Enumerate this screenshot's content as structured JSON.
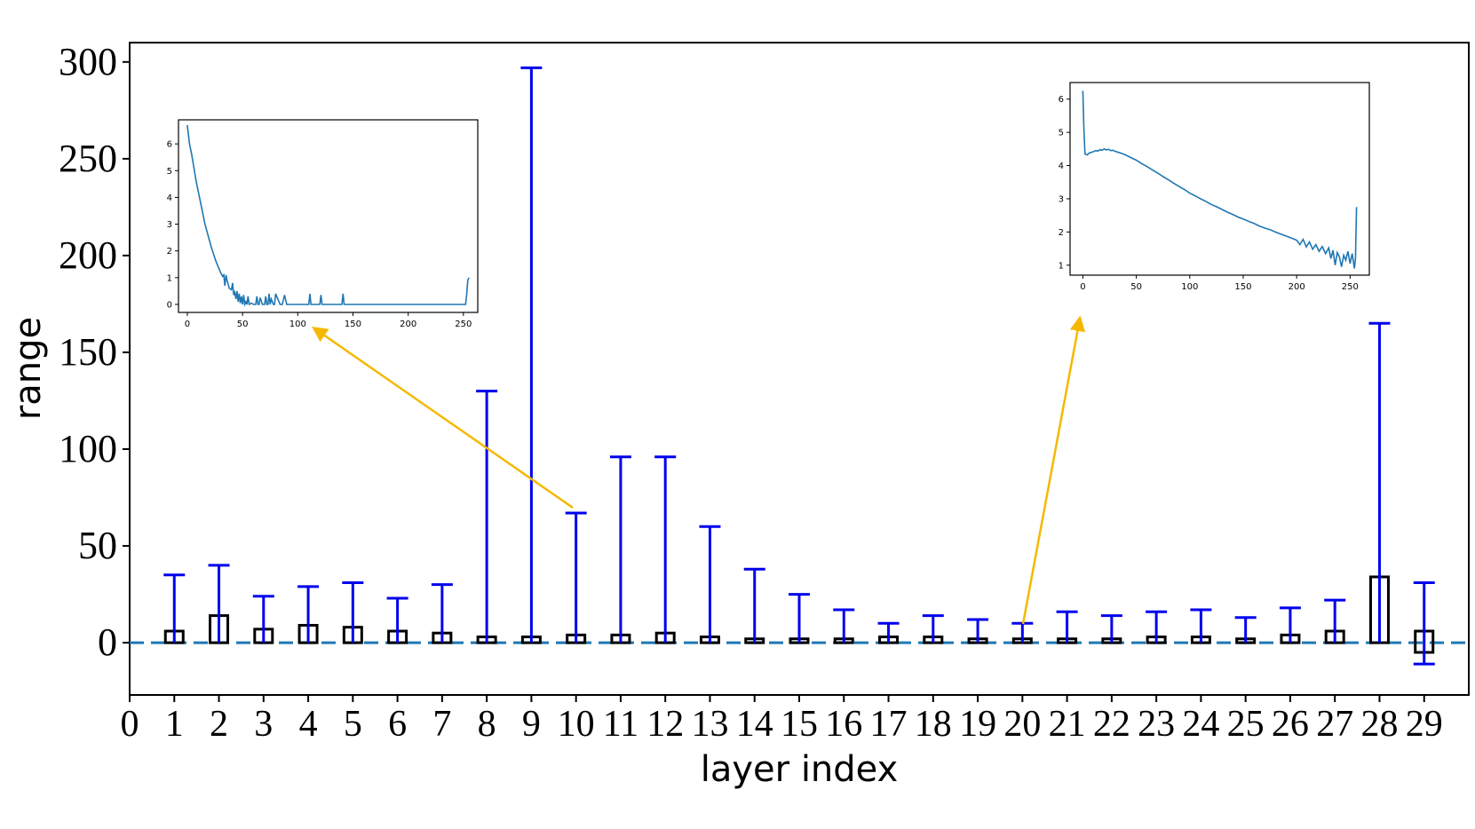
{
  "chart_data": {
    "type": "box",
    "xlabel": "layer index",
    "ylabel": "range",
    "xlim": [
      0,
      30
    ],
    "ylim": [
      -27,
      310
    ],
    "xticks": [
      0,
      1,
      2,
      3,
      4,
      5,
      6,
      7,
      8,
      9,
      10,
      11,
      12,
      13,
      14,
      15,
      16,
      17,
      18,
      19,
      20,
      21,
      22,
      23,
      24,
      25,
      26,
      27,
      28,
      29
    ],
    "yticks": [
      0,
      50,
      100,
      150,
      200,
      250,
      300
    ],
    "reference_line": {
      "y": 0,
      "style": "dashed",
      "color": "#1f77b4"
    },
    "whisker_color": "#0000ee",
    "box_color": "#000000",
    "layers": [
      {
        "x": 1,
        "min": 0,
        "max": 35,
        "box_low": 0,
        "box_high": 6
      },
      {
        "x": 2,
        "min": 0,
        "max": 40,
        "box_low": 0,
        "box_high": 14
      },
      {
        "x": 3,
        "min": 0,
        "max": 24,
        "box_low": 0,
        "box_high": 7
      },
      {
        "x": 4,
        "min": 0,
        "max": 29,
        "box_low": 0,
        "box_high": 9
      },
      {
        "x": 5,
        "min": 0,
        "max": 31,
        "box_low": 0,
        "box_high": 8
      },
      {
        "x": 6,
        "min": 0,
        "max": 23,
        "box_low": 0,
        "box_high": 6
      },
      {
        "x": 7,
        "min": 0,
        "max": 30,
        "box_low": 0,
        "box_high": 5
      },
      {
        "x": 8,
        "min": 0,
        "max": 130,
        "box_low": 0,
        "box_high": 3
      },
      {
        "x": 9,
        "min": 0,
        "max": 297,
        "box_low": 0,
        "box_high": 3
      },
      {
        "x": 10,
        "min": 0,
        "max": 67,
        "box_low": 0,
        "box_high": 4
      },
      {
        "x": 11,
        "min": 0,
        "max": 96,
        "box_low": 0,
        "box_high": 4
      },
      {
        "x": 12,
        "min": 0,
        "max": 96,
        "box_low": 0,
        "box_high": 5
      },
      {
        "x": 13,
        "min": 0,
        "max": 60,
        "box_low": 0,
        "box_high": 3
      },
      {
        "x": 14,
        "min": 0,
        "max": 38,
        "box_low": 0,
        "box_high": 2
      },
      {
        "x": 15,
        "min": 0,
        "max": 25,
        "box_low": 0,
        "box_high": 2
      },
      {
        "x": 16,
        "min": 0,
        "max": 17,
        "box_low": 0,
        "box_high": 2
      },
      {
        "x": 17,
        "min": 0,
        "max": 10,
        "box_low": 0,
        "box_high": 3
      },
      {
        "x": 18,
        "min": 0,
        "max": 14,
        "box_low": 0,
        "box_high": 3
      },
      {
        "x": 19,
        "min": 0,
        "max": 12,
        "box_low": 0,
        "box_high": 2
      },
      {
        "x": 20,
        "min": 0,
        "max": 10,
        "box_low": 0,
        "box_high": 2
      },
      {
        "x": 21,
        "min": 0,
        "max": 16,
        "box_low": 0,
        "box_high": 2
      },
      {
        "x": 22,
        "min": 0,
        "max": 14,
        "box_low": 0,
        "box_high": 2
      },
      {
        "x": 23,
        "min": 0,
        "max": 16,
        "box_low": 0,
        "box_high": 3
      },
      {
        "x": 24,
        "min": 0,
        "max": 17,
        "box_low": 0,
        "box_high": 3
      },
      {
        "x": 25,
        "min": 0,
        "max": 13,
        "box_low": 0,
        "box_high": 2
      },
      {
        "x": 26,
        "min": 0,
        "max": 18,
        "box_low": 0,
        "box_high": 4
      },
      {
        "x": 27,
        "min": 0,
        "max": 22,
        "box_low": 0,
        "box_high": 6
      },
      {
        "x": 28,
        "min": 0,
        "max": 165,
        "box_low": 0,
        "box_high": 34
      },
      {
        "x": 29,
        "min": -11,
        "max": 31,
        "box_low": -5,
        "box_high": 6
      }
    ],
    "insets": [
      {
        "name": "layer-10-inset",
        "points_to_layer": 10,
        "type": "line",
        "color": "#1f77b4",
        "xticks": [
          0,
          50,
          100,
          150,
          200,
          250
        ],
        "yticks": [
          0,
          1,
          2,
          3,
          4,
          5,
          6
        ],
        "xlim": [
          -8,
          263
        ],
        "ylim": [
          -0.3,
          6.9
        ],
        "x": [
          0,
          2,
          4,
          6,
          8,
          10,
          12,
          14,
          16,
          18,
          20,
          22,
          24,
          26,
          28,
          30,
          32,
          33,
          34,
          35,
          36,
          38,
          40,
          41,
          42,
          43,
          44,
          45,
          46,
          47,
          48,
          49,
          50,
          51,
          52,
          53,
          54,
          55,
          56,
          58,
          60,
          62,
          63,
          64,
          65,
          66,
          68,
          70,
          71,
          72,
          73,
          74,
          75,
          76,
          78,
          79,
          80,
          82,
          84,
          86,
          88,
          90,
          95,
          100,
          105,
          110,
          111,
          112,
          113,
          114,
          120,
          121,
          122,
          123,
          124,
          130,
          140,
          141,
          142,
          143,
          144,
          150,
          200,
          250,
          252,
          253,
          254,
          255
        ],
        "y": [
          6.7,
          6.0,
          5.6,
          5.1,
          4.6,
          4.2,
          3.8,
          3.4,
          3.0,
          2.7,
          2.4,
          2.1,
          1.85,
          1.6,
          1.4,
          1.2,
          1.05,
          1.1,
          0.7,
          1.1,
          0.9,
          0.6,
          0.55,
          0.8,
          0.35,
          0.45,
          0.2,
          0.5,
          0.1,
          0.4,
          0.05,
          0.3,
          0.0,
          0.35,
          0.0,
          0.1,
          0.0,
          0.3,
          0.0,
          0.05,
          0.0,
          0.0,
          0.3,
          0.0,
          0.0,
          0.25,
          0.0,
          0.0,
          0.3,
          0.0,
          0.0,
          0.4,
          0.0,
          0.2,
          0.0,
          0.0,
          0.4,
          0.2,
          0.0,
          0.0,
          0.35,
          0.0,
          0.0,
          0.0,
          0.0,
          0.0,
          0.4,
          0.0,
          0.0,
          0.0,
          0.0,
          0.35,
          0.0,
          0.0,
          0.0,
          0.0,
          0.0,
          0.4,
          0.0,
          0.0,
          0.0,
          0.0,
          0.0,
          0.0,
          0.0,
          0.4,
          0.9,
          1.0
        ]
      },
      {
        "name": "layer-20-inset",
        "points_to_layer": 20,
        "type": "line",
        "color": "#1f77b4",
        "xticks": [
          0,
          50,
          100,
          150,
          200,
          250
        ],
        "yticks": [
          1,
          2,
          3,
          4,
          5,
          6
        ],
        "xlim": [
          -12,
          268
        ],
        "ylim": [
          0.7,
          6.5
        ],
        "x": [
          0,
          1,
          2,
          4,
          6,
          8,
          10,
          12,
          14,
          16,
          18,
          20,
          22,
          24,
          26,
          28,
          30,
          35,
          40,
          45,
          50,
          55,
          60,
          65,
          70,
          75,
          80,
          85,
          90,
          95,
          100,
          105,
          110,
          115,
          120,
          125,
          130,
          135,
          140,
          145,
          150,
          155,
          160,
          165,
          170,
          175,
          180,
          185,
          190,
          195,
          200,
          203,
          206,
          209,
          212,
          215,
          218,
          221,
          224,
          227,
          230,
          232,
          234,
          236,
          238,
          240,
          242,
          244,
          246,
          248,
          250,
          252,
          254,
          255,
          256
        ],
        "y": [
          6.25,
          5.1,
          4.35,
          4.32,
          4.38,
          4.4,
          4.42,
          4.45,
          4.44,
          4.48,
          4.46,
          4.5,
          4.47,
          4.49,
          4.45,
          4.46,
          4.43,
          4.38,
          4.32,
          4.24,
          4.16,
          4.06,
          3.97,
          3.87,
          3.77,
          3.67,
          3.57,
          3.47,
          3.37,
          3.28,
          3.17,
          3.09,
          3.0,
          2.92,
          2.83,
          2.76,
          2.68,
          2.6,
          2.53,
          2.45,
          2.39,
          2.32,
          2.26,
          2.18,
          2.12,
          2.07,
          2.0,
          1.94,
          1.88,
          1.82,
          1.75,
          1.62,
          1.78,
          1.55,
          1.7,
          1.48,
          1.62,
          1.42,
          1.56,
          1.35,
          1.52,
          1.2,
          1.45,
          1.0,
          1.38,
          1.25,
          0.95,
          1.3,
          1.15,
          1.42,
          1.05,
          1.35,
          0.9,
          1.2,
          2.75
        ]
      }
    ]
  }
}
